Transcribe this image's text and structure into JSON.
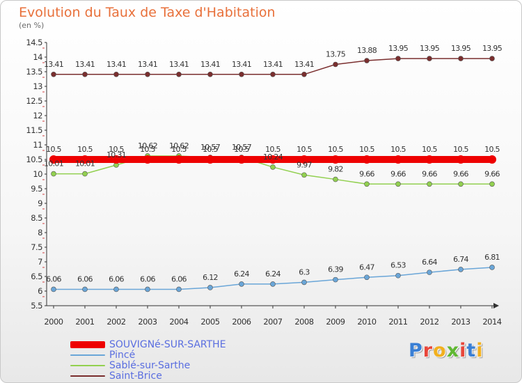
{
  "header": {
    "title": "Evolution du Taux de Taxe d'Habitation",
    "subtitle": "(en %)"
  },
  "logo": {
    "text": "Proxiti",
    "letter_colors": [
      "#3a7fd5",
      "#e8463a",
      "#f2b01e",
      "#5fb832",
      "#e8463a",
      "#3a7fd5",
      "#f2b01e"
    ]
  },
  "chart_data": {
    "type": "line",
    "title": "Evolution du Taux de Taxe d'Habitation",
    "ylabel": "(en %)",
    "x": [
      "2000",
      "2001",
      "2002",
      "2003",
      "2004",
      "2005",
      "2006",
      "2007",
      "2008",
      "2009",
      "2010",
      "2011",
      "2012",
      "2013",
      "2014"
    ],
    "ylim": [
      5.5,
      14.5
    ],
    "yticks": [
      "5.5",
      "6",
      "6.5",
      "7",
      "7.5",
      "8",
      "8.5",
      "9",
      "9.5",
      "10",
      "10.5",
      "11",
      "11.5",
      "12",
      "12.5",
      "13",
      "13.5",
      "14",
      "14.5"
    ],
    "grid": false,
    "legend_position": "bottom-left",
    "series": [
      {
        "name": "SOUVIGNé-SUR-SARTHE",
        "color": "#ee0000",
        "values": [
          10.5,
          10.5,
          10.5,
          10.5,
          10.5,
          10.5,
          10.5,
          10.5,
          10.5,
          10.5,
          10.5,
          10.5,
          10.5,
          10.5,
          10.5
        ],
        "labels": [
          "10.5",
          "10.5",
          "10.5",
          "10.5",
          "10.5",
          "10.5",
          "10.5",
          "10.5",
          "10.5",
          "10.5",
          "10.5",
          "10.5",
          "10.5",
          "10.5",
          "10.5"
        ]
      },
      {
        "name": "Pincé",
        "color": "#6aa6d8",
        "values": [
          6.06,
          6.06,
          6.06,
          6.06,
          6.06,
          6.12,
          6.24,
          6.24,
          6.3,
          6.39,
          6.47,
          6.53,
          6.64,
          6.74,
          6.81
        ],
        "labels": [
          "6.06",
          "6.06",
          "6.06",
          "6.06",
          "6.06",
          "6.12",
          "6.24",
          "6.24",
          "6.3",
          "6.39",
          "6.47",
          "6.53",
          "6.64",
          "6.74",
          "6.81"
        ]
      },
      {
        "name": "Sablé-sur-Sarthe",
        "color": "#92d050",
        "values": [
          10.01,
          10.01,
          10.31,
          10.62,
          10.62,
          10.57,
          10.57,
          10.24,
          9.97,
          9.82,
          9.66,
          9.66,
          9.66,
          9.66,
          9.66
        ],
        "labels": [
          "10.01",
          "10.01",
          "10.31",
          "10.62",
          "10.62",
          "10.57",
          "10.57",
          "10.24",
          "9.97",
          "9.82",
          "9.66",
          "9.66",
          "9.66",
          "9.66",
          "9.66"
        ]
      },
      {
        "name": "Saint-Brice",
        "color": "#7a2e2e",
        "values": [
          13.41,
          13.41,
          13.41,
          13.41,
          13.41,
          13.41,
          13.41,
          13.41,
          13.41,
          13.75,
          13.88,
          13.95,
          13.95,
          13.95,
          13.95
        ],
        "labels": [
          "13.41",
          "13.41",
          "13.41",
          "13.41",
          "13.41",
          "13.41",
          "13.41",
          "13.41",
          "13.41",
          "13.75",
          "13.88",
          "13.95",
          "13.95",
          "13.95",
          "13.95"
        ]
      }
    ]
  }
}
